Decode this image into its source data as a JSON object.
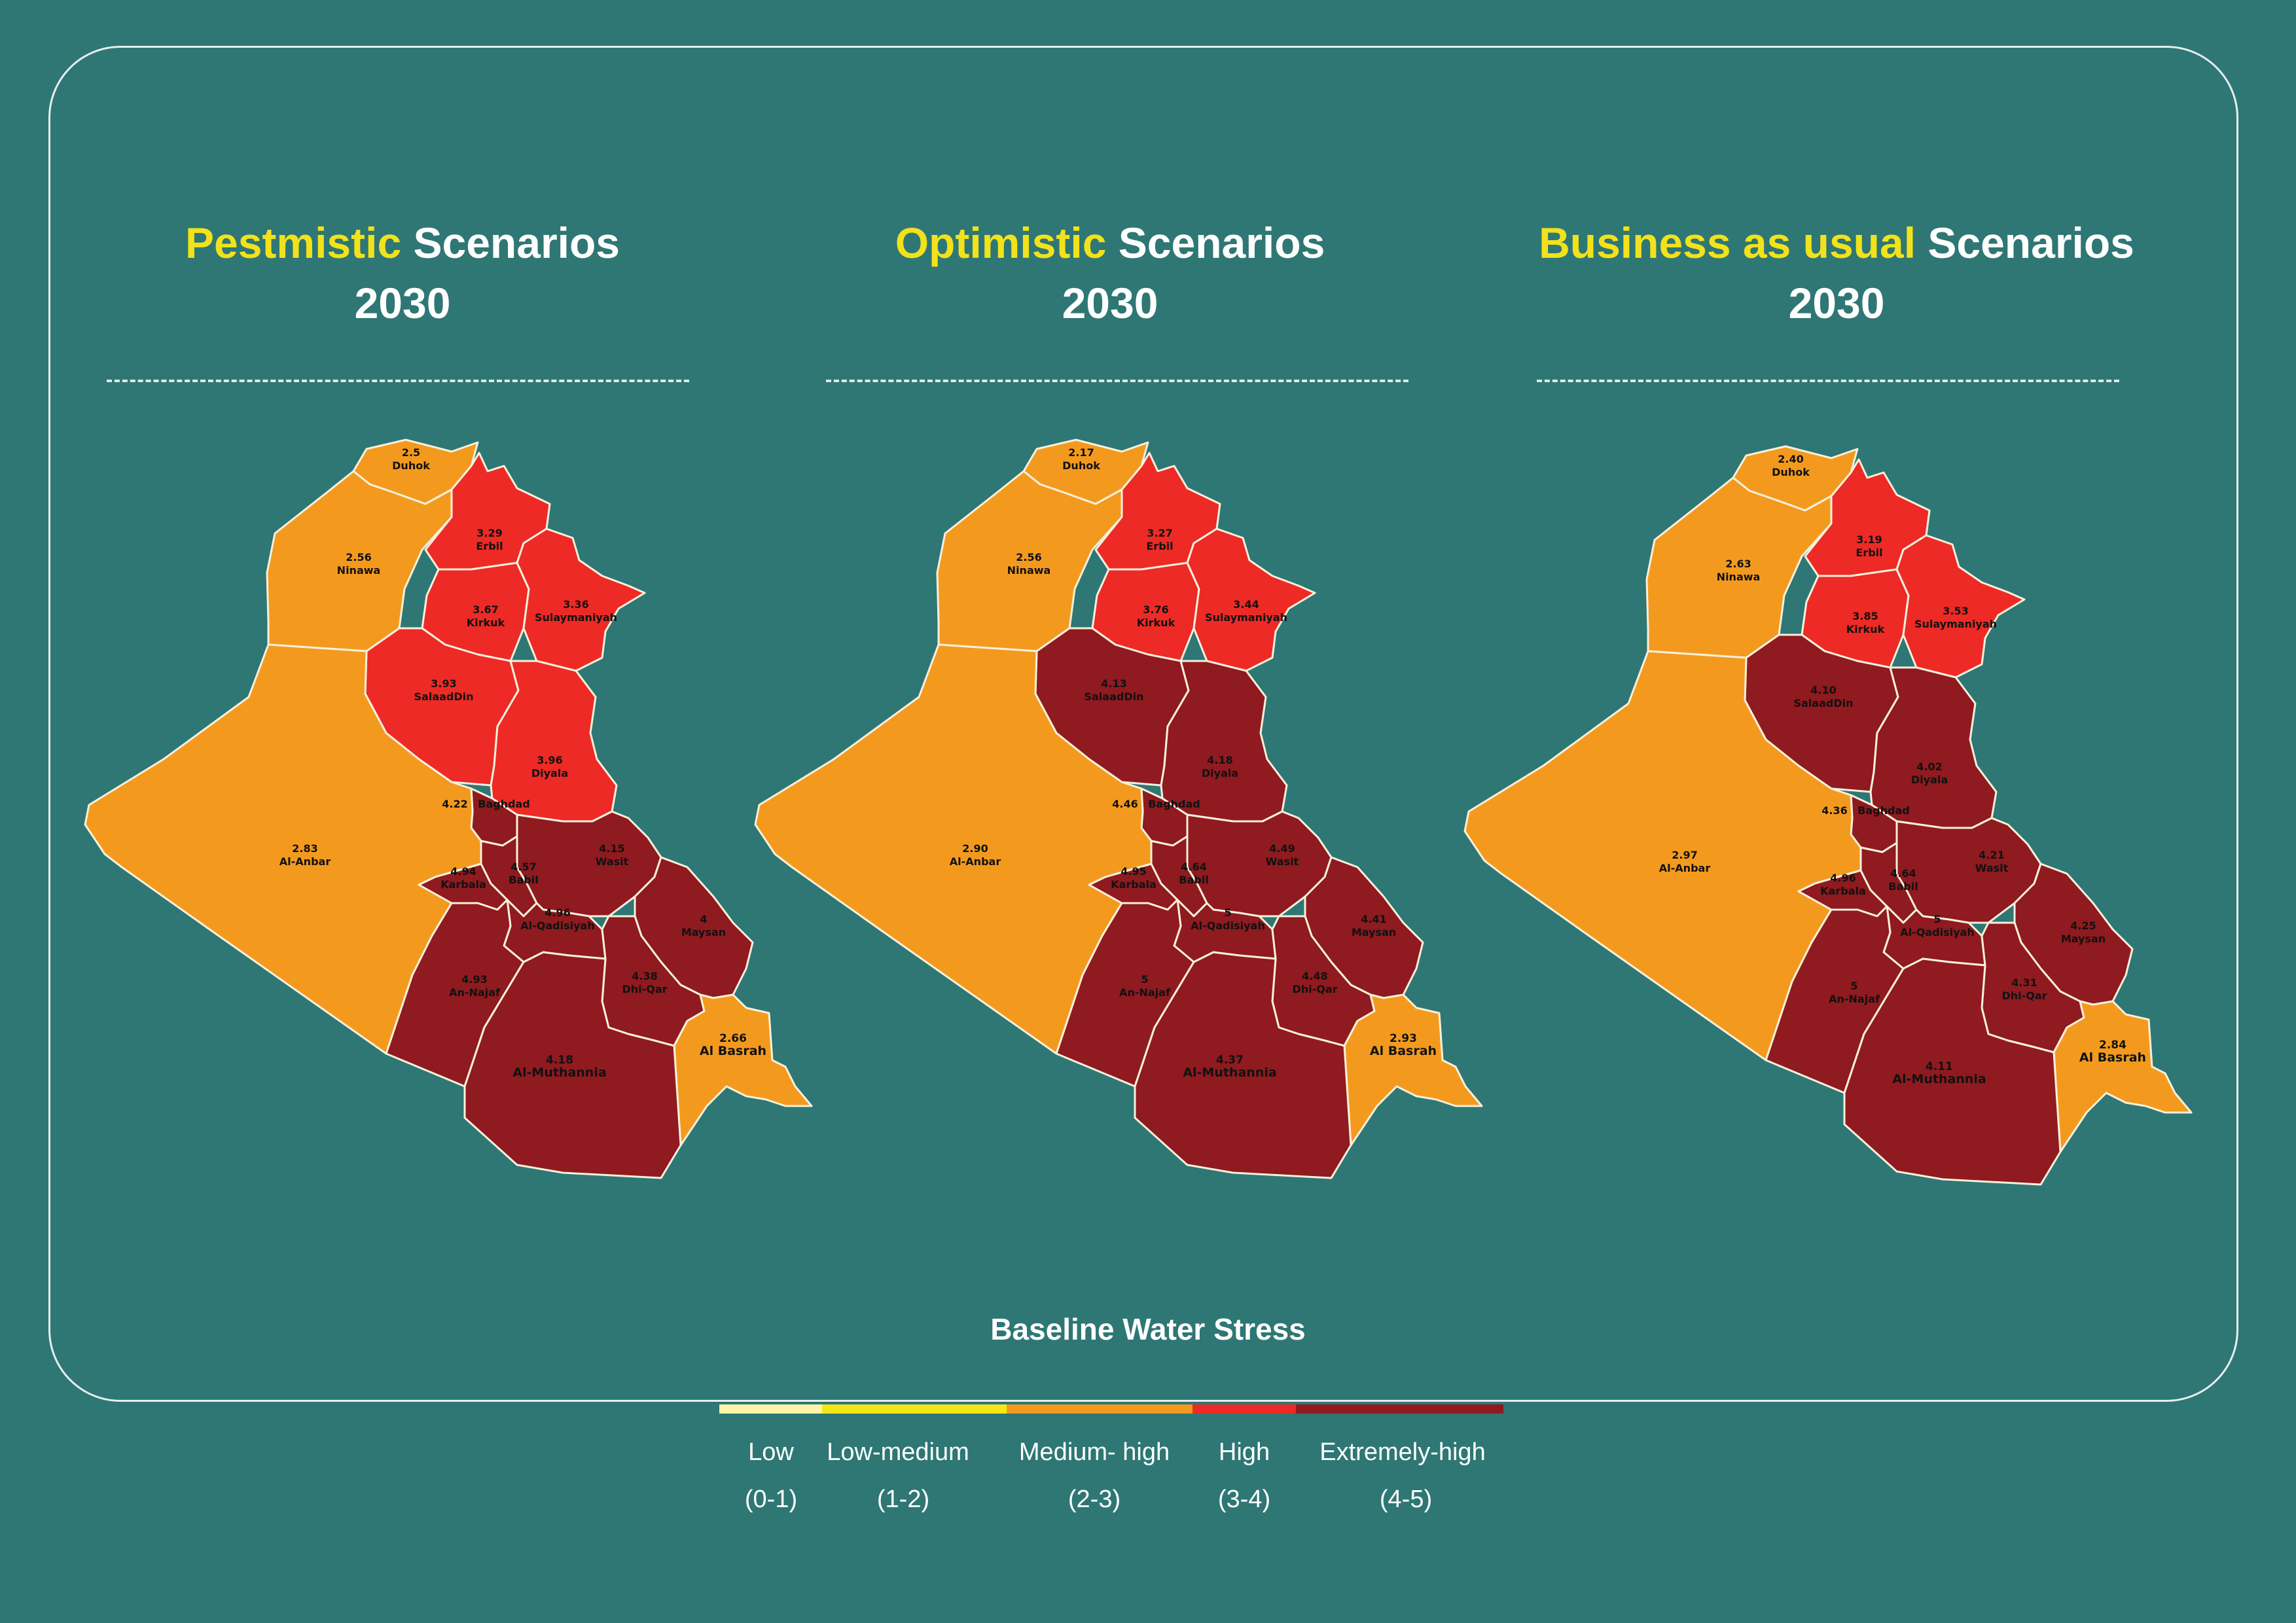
{
  "panels": [
    {
      "title_highlight": "Pestmistic",
      "title_rest": "Scenarios",
      "year": "2030",
      "regions": [
        {
          "name": "Duhok",
          "value": "2.5",
          "level": "medium-high"
        },
        {
          "name": "Ninawa",
          "value": "2.56",
          "level": "medium-high"
        },
        {
          "name": "Erbil",
          "value": "3.29",
          "level": "high"
        },
        {
          "name": "Kirkuk",
          "value": "3.67",
          "level": "high"
        },
        {
          "name": "Sulaymaniyah",
          "value": "3.36",
          "level": "high"
        },
        {
          "name": "SalaadDin",
          "value": "3.93",
          "level": "high"
        },
        {
          "name": "Diyala",
          "value": "3.96",
          "level": "high"
        },
        {
          "name": "Baghdad",
          "value": "4.22",
          "level": "extremely-high"
        },
        {
          "name": "Al-Anbar",
          "value": "2.83",
          "level": "medium-high"
        },
        {
          "name": "Karbala",
          "value": "4.94",
          "level": "extremely-high"
        },
        {
          "name": "Babil",
          "value": "4.57",
          "level": "extremely-high"
        },
        {
          "name": "Wasit",
          "value": "4.15",
          "level": "extremely-high"
        },
        {
          "name": "Al-Qadisiyah",
          "value": "4.96",
          "level": "extremely-high"
        },
        {
          "name": "Maysan",
          "value": "4",
          "level": "extremely-high"
        },
        {
          "name": "An-Najaf",
          "value": "4.93",
          "level": "extremely-high"
        },
        {
          "name": "Dhi-Qar",
          "value": "4.38",
          "level": "extremely-high"
        },
        {
          "name": "Al Basrah",
          "value": "2.66",
          "level": "medium-high"
        },
        {
          "name": "Al-Muthannia",
          "value": "4.18",
          "level": "extremely-high"
        }
      ]
    },
    {
      "title_highlight": "Optimistic",
      "title_rest": "Scenarios",
      "year": "2030",
      "regions": [
        {
          "name": "Duhok",
          "value": "2.17",
          "level": "medium-high"
        },
        {
          "name": "Ninawa",
          "value": "2.56",
          "level": "medium-high"
        },
        {
          "name": "Erbil",
          "value": "3.27",
          "level": "high"
        },
        {
          "name": "Kirkuk",
          "value": "3.76",
          "level": "high"
        },
        {
          "name": "Sulaymaniyah",
          "value": "3.44",
          "level": "high"
        },
        {
          "name": "SalaadDin",
          "value": "4.13",
          "level": "extremely-high"
        },
        {
          "name": "Diyala",
          "value": "4.18",
          "level": "extremely-high"
        },
        {
          "name": "Baghdad",
          "value": "4.46",
          "level": "extremely-high"
        },
        {
          "name": "Al-Anbar",
          "value": "2.90",
          "level": "medium-high"
        },
        {
          "name": "Karbala",
          "value": "4.95",
          "level": "extremely-high"
        },
        {
          "name": "Babil",
          "value": "4.64",
          "level": "extremely-high"
        },
        {
          "name": "Wasit",
          "value": "4.49",
          "level": "extremely-high"
        },
        {
          "name": "Al-Qadisiyah",
          "value": "5",
          "level": "extremely-high"
        },
        {
          "name": "Maysan",
          "value": "4.41",
          "level": "extremely-high"
        },
        {
          "name": "An-Najaf",
          "value": "5",
          "level": "extremely-high"
        },
        {
          "name": "Dhi-Qar",
          "value": "4.48",
          "level": "extremely-high"
        },
        {
          "name": "Al Basrah",
          "value": "2.93",
          "level": "medium-high"
        },
        {
          "name": "Al-Muthannia",
          "value": "4.37",
          "level": "extremely-high"
        }
      ]
    },
    {
      "title_highlight": "Business as usual",
      "title_rest": "Scenarios",
      "year": "2030",
      "regions": [
        {
          "name": "Duhok",
          "value": "2.40",
          "level": "medium-high"
        },
        {
          "name": "Ninawa",
          "value": "2.63",
          "level": "medium-high"
        },
        {
          "name": "Erbil",
          "value": "3.19",
          "level": "high"
        },
        {
          "name": "Kirkuk",
          "value": "3.85",
          "level": "high"
        },
        {
          "name": "Sulaymaniyah",
          "value": "3.53",
          "level": "high"
        },
        {
          "name": "SalaadDin",
          "value": "4.10",
          "level": "extremely-high"
        },
        {
          "name": "Diyala",
          "value": "4.02",
          "level": "extremely-high"
        },
        {
          "name": "Baghdad",
          "value": "4.36",
          "level": "extremely-high"
        },
        {
          "name": "Al-Anbar",
          "value": "2.97",
          "level": "medium-high"
        },
        {
          "name": "Karbala",
          "value": "4.96",
          "level": "extremely-high"
        },
        {
          "name": "Babil",
          "value": "4.64",
          "level": "extremely-high"
        },
        {
          "name": "Wasit",
          "value": "4.21",
          "level": "extremely-high"
        },
        {
          "name": "Al-Qadisiyah",
          "value": "5",
          "level": "extremely-high"
        },
        {
          "name": "Maysan",
          "value": "4.25",
          "level": "extremely-high"
        },
        {
          "name": "An-Najaf",
          "value": "5",
          "level": "extremely-high"
        },
        {
          "name": "Dhi-Qar",
          "value": "4.31",
          "level": "extremely-high"
        },
        {
          "name": "Al Basrah",
          "value": "2.84",
          "level": "medium-high"
        },
        {
          "name": "Al-Muthannia",
          "value": "4.11",
          "level": "extremely-high"
        }
      ]
    }
  ],
  "legend": {
    "title": "Baseline Water Stress",
    "items": [
      {
        "key": "low",
        "label": "Low",
        "range": "(0-1)",
        "color": "#fdf6a8"
      },
      {
        "key": "low-medium",
        "label": "Low-medium",
        "range": "(1-2)",
        "color": "#f5e61a"
      },
      {
        "key": "medium-high",
        "label": "Medium- high",
        "range": "(2-3)",
        "color": "#f39a1e"
      },
      {
        "key": "high",
        "label": "High",
        "range": "(3-4)",
        "color": "#ed2a25"
      },
      {
        "key": "extremely-high",
        "label": "Extremely-high",
        "range": "(4-5)",
        "color": "#8f1a1f"
      }
    ]
  },
  "colors": {
    "background": "#2e7774",
    "title_highlight": "#f2e21b",
    "region_border": "#f7f0dc"
  }
}
